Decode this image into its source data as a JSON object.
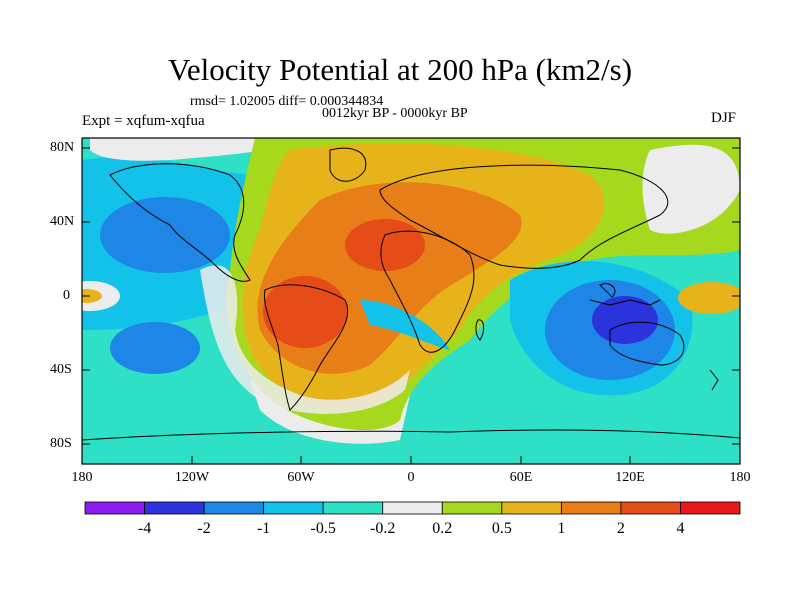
{
  "title": "Velocity Potential at 200 hPa (km2/s)",
  "stats_line": "rmsd= 1.02005 diff= 0.000344834",
  "period_line": "0012kyr BP - 0000kyr BP",
  "experiment_label": "Expt = xqfum-xqfua",
  "season_label": "DJF",
  "map_axes": {
    "lon_ticks": [
      "180",
      "120W",
      "60W",
      "0",
      "60E",
      "120E",
      "180"
    ],
    "lat_ticks": [
      "80N",
      "40N",
      "0",
      "40S",
      "80S"
    ]
  },
  "colorbar": {
    "labels": [
      "-4",
      "-2",
      "-1",
      "-0.5",
      "-0.2",
      "0.2",
      "0.5",
      "1",
      "2",
      "4"
    ],
    "colors": [
      "#8a1cf0",
      "#2b33dc",
      "#1d86e6",
      "#12c2e9",
      "#2ee0c6",
      "#ececec",
      "#a6d81e",
      "#e6b41a",
      "#e87e18",
      "#e64c18",
      "#e61818"
    ]
  }
}
